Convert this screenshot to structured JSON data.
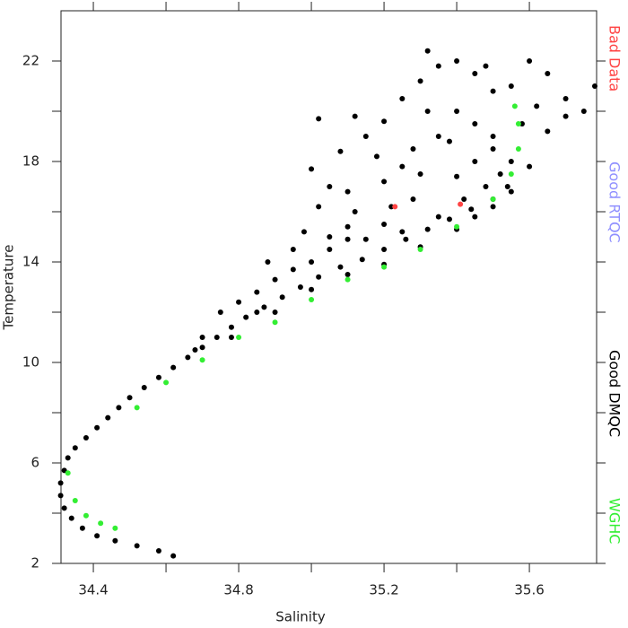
{
  "chart_data": {
    "type": "scatter",
    "xlabel": "Salinity",
    "ylabel": "Temperature",
    "xlim": [
      34.311,
      35.785
    ],
    "ylim": [
      2,
      24
    ],
    "xticks": [
      34.4,
      34.8,
      35.2,
      35.6
    ],
    "yticks": [
      2,
      6,
      10,
      14,
      18,
      22
    ],
    "xminor": [
      34.6,
      35.0,
      35.4
    ],
    "yminor": [
      4,
      8,
      12,
      16,
      20
    ],
    "series": [
      {
        "name": "Bad Data",
        "color": "#ff4444",
        "x": [
          35.23,
          35.41
        ],
        "y": [
          16.2,
          16.3
        ]
      },
      {
        "name": "Good RTQC",
        "color": "#8f8fff",
        "x": [],
        "y": []
      },
      {
        "name": "Good DMQC",
        "color": "#000000",
        "x": [
          34.62,
          34.58,
          34.52,
          34.46,
          34.41,
          34.37,
          34.34,
          34.32,
          34.31,
          34.31,
          34.32,
          34.33,
          34.35,
          34.38,
          34.41,
          34.44,
          34.47,
          34.5,
          34.54,
          34.58,
          34.62,
          34.66,
          34.7,
          34.74,
          34.78,
          34.82,
          34.87,
          34.92,
          34.97,
          35.02,
          35.08,
          35.14,
          35.2,
          35.26,
          35.32,
          35.38,
          35.44,
          35.5,
          35.54,
          34.75,
          34.8,
          34.85,
          34.9,
          34.95,
          35.0,
          35.05,
          35.1,
          34.78,
          34.9,
          35.0,
          35.1,
          35.2,
          35.3,
          35.4,
          35.45,
          35.5,
          35.55,
          35.35,
          35.25,
          35.15,
          35.05,
          34.98,
          35.02,
          35.1,
          35.2,
          35.3,
          35.4,
          35.45,
          35.5,
          35.05,
          35.12,
          35.22,
          35.28,
          35.0,
          35.08,
          35.15,
          35.2,
          35.12,
          35.02,
          35.25,
          35.3,
          35.32,
          35.35,
          35.4,
          35.45,
          35.5,
          35.55,
          35.6,
          35.65,
          35.7,
          35.75,
          35.78,
          35.62,
          35.58,
          35.65,
          35.7,
          35.45,
          35.4,
          35.35,
          35.5,
          35.55,
          35.6,
          35.48,
          35.42,
          35.52,
          35.28,
          35.25,
          35.18,
          35.38,
          35.32,
          35.48,
          35.2,
          35.1,
          34.95,
          34.88,
          34.85,
          34.7,
          34.68
        ],
        "y": [
          2.3,
          2.5,
          2.7,
          2.9,
          3.1,
          3.4,
          3.8,
          4.2,
          4.7,
          5.2,
          5.7,
          6.2,
          6.6,
          7.0,
          7.4,
          7.8,
          8.2,
          8.6,
          9.0,
          9.4,
          9.8,
          10.2,
          10.6,
          11.0,
          11.4,
          11.8,
          12.2,
          12.6,
          13.0,
          13.4,
          13.8,
          14.1,
          14.5,
          14.9,
          15.3,
          15.7,
          16.1,
          16.5,
          17.0,
          12.0,
          12.4,
          12.8,
          13.3,
          13.7,
          14.0,
          14.5,
          14.9,
          11.0,
          12.0,
          12.9,
          13.5,
          13.9,
          14.6,
          15.3,
          15.8,
          16.2,
          16.8,
          15.8,
          15.2,
          14.9,
          15.0,
          15.2,
          16.2,
          16.8,
          17.2,
          17.5,
          17.4,
          18.0,
          18.5,
          17.0,
          16.0,
          16.2,
          16.5,
          17.7,
          18.4,
          19.0,
          19.6,
          19.8,
          19.7,
          20.5,
          21.2,
          22.4,
          21.8,
          22.0,
          21.5,
          20.8,
          21.0,
          22.0,
          21.5,
          20.5,
          20.0,
          21.0,
          20.2,
          19.5,
          19.2,
          19.8,
          19.5,
          20.0,
          19.0,
          19.0,
          18.0,
          17.8,
          17.0,
          16.5,
          17.5,
          18.5,
          17.8,
          18.2,
          18.8,
          20.0,
          21.8,
          15.5,
          15.4,
          14.5,
          14.0,
          12.0,
          11.0,
          10.5
        ]
      },
      {
        "name": "WGHC",
        "color": "#33ee33",
        "x": [
          34.33,
          34.35,
          34.38,
          34.42,
          34.46,
          34.52,
          34.6,
          34.7,
          34.8,
          34.9,
          35.0,
          35.1,
          35.2,
          35.3,
          35.4,
          35.5,
          35.55,
          35.57,
          35.57,
          35.56
        ],
        "y": [
          5.6,
          4.5,
          3.9,
          3.6,
          3.4,
          8.2,
          9.2,
          10.1,
          11.0,
          11.6,
          12.5,
          13.3,
          13.8,
          14.5,
          15.4,
          16.5,
          17.5,
          18.5,
          19.5,
          20.2
        ]
      }
    ]
  }
}
